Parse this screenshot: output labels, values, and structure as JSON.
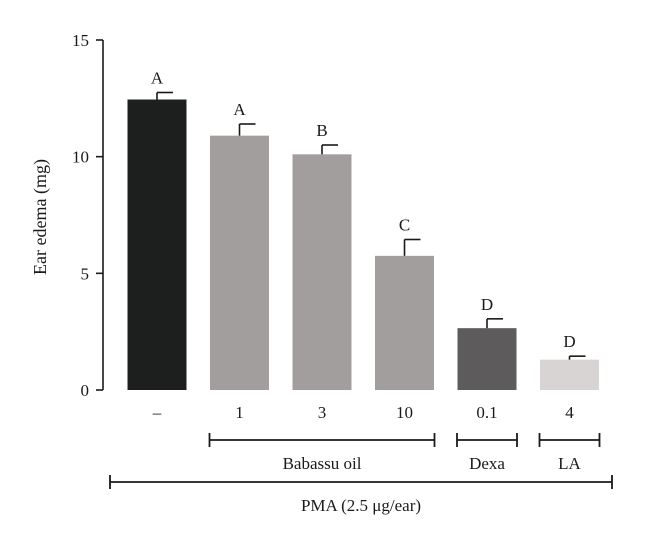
{
  "chart_data": {
    "type": "bar",
    "ylabel": "Ear edema (mg)",
    "ylim": [
      0,
      15
    ],
    "yticks": [
      "0",
      "5",
      "10",
      "15"
    ],
    "categories": [
      "–",
      "1",
      "3",
      "10",
      "0.1",
      "4"
    ],
    "values": [
      12.45,
      10.9,
      10.1,
      5.75,
      2.65,
      1.3
    ],
    "errors": [
      0.3,
      0.5,
      0.4,
      0.7,
      0.4,
      0.15
    ],
    "significance": [
      "A",
      "A",
      "B",
      "C",
      "D",
      "D"
    ],
    "bar_colors": [
      "#1d1f1e",
      "#a39e9e",
      "#a39e9e",
      "#a39e9e",
      "#5d5b5c",
      "#d9d4d4"
    ],
    "groups": [
      {
        "label": "Babassu oil",
        "from_index": 1,
        "to_index": 3
      },
      {
        "label": "Dexa",
        "from_index": 4,
        "to_index": 4
      },
      {
        "label": "LA",
        "from_index": 5,
        "to_index": 5
      }
    ],
    "treatment": {
      "label": "PMA (2.5 μg/ear)",
      "from_index": 0,
      "to_index": 5
    },
    "grid": false
  }
}
